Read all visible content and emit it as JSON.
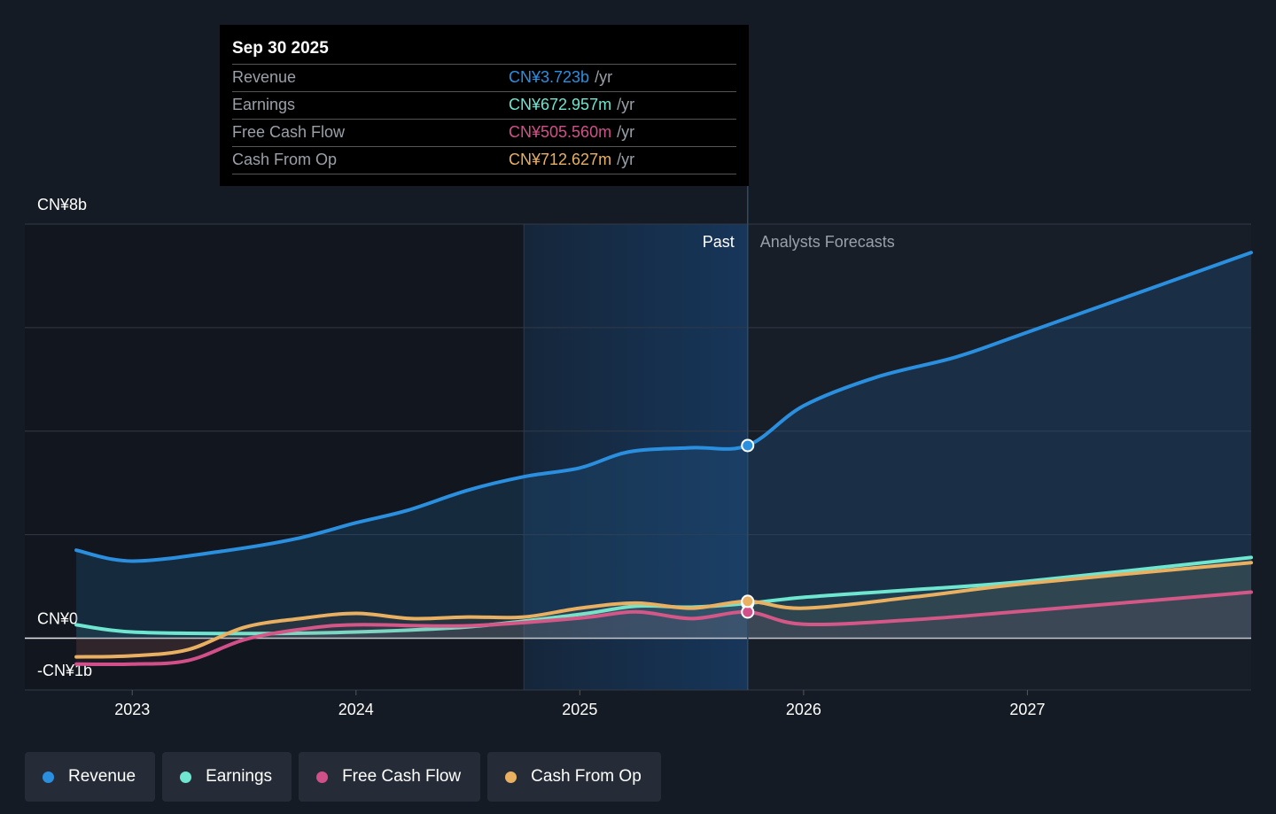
{
  "chart_data": {
    "type": "line",
    "xlim": [
      2022.52,
      2028.0
    ],
    "xticks": [
      2023,
      2024,
      2025,
      2026,
      2027
    ],
    "ylim": [
      -1,
      8
    ],
    "yticks": [
      {
        "value": -1,
        "label": "-CN¥1b"
      },
      {
        "value": 0,
        "label": "CN¥0"
      },
      {
        "value": 2,
        "label": null
      },
      {
        "value": 4,
        "label": null
      },
      {
        "value": 6,
        "label": null
      },
      {
        "value": 8,
        "label": "CN¥8b"
      }
    ],
    "grid": true,
    "past_band": [
      2024.75,
      2025.75
    ],
    "past_label": "Past",
    "forecast_label": "Analysts Forecasts",
    "highlight_x": 2025.75,
    "series": [
      {
        "name": "Revenue",
        "color": "#2b8fe0",
        "x": [
          2022.75,
          2023.0,
          2023.4,
          2023.73,
          2024.0,
          2024.23,
          2024.5,
          2024.75,
          2025.0,
          2025.22,
          2025.5,
          2025.75,
          2026.0,
          2026.33,
          2026.68,
          2027.0,
          2028.0
        ],
        "values": [
          1.7,
          1.49,
          1.68,
          1.92,
          2.23,
          2.47,
          2.86,
          3.12,
          3.29,
          3.6,
          3.68,
          3.723,
          4.49,
          5.05,
          5.43,
          5.91,
          7.45
        ]
      },
      {
        "name": "Earnings",
        "color": "#6ee6d0",
        "x": [
          2022.75,
          2023.0,
          2023.5,
          2024.0,
          2024.5,
          2025.0,
          2025.25,
          2025.5,
          2025.75,
          2026.0,
          2026.5,
          2027.0,
          2028.0
        ],
        "values": [
          0.26,
          0.12,
          0.09,
          0.12,
          0.22,
          0.46,
          0.62,
          0.6,
          0.673,
          0.79,
          0.94,
          1.1,
          1.56
        ]
      },
      {
        "name": "Free Cash Flow",
        "color": "#d2508a",
        "x": [
          2022.75,
          2023.0,
          2023.25,
          2023.5,
          2023.75,
          2024.0,
          2024.5,
          2025.0,
          2025.25,
          2025.5,
          2025.75,
          2026.0,
          2026.5,
          2027.0,
          2028.0
        ],
        "values": [
          -0.5,
          -0.5,
          -0.43,
          -0.03,
          0.17,
          0.26,
          0.24,
          0.39,
          0.51,
          0.38,
          0.506,
          0.27,
          0.36,
          0.53,
          0.89
        ]
      },
      {
        "name": "Cash From Op",
        "color": "#e9b062",
        "x": [
          2022.75,
          2023.0,
          2023.25,
          2023.5,
          2023.75,
          2024.0,
          2024.25,
          2024.5,
          2024.75,
          2025.0,
          2025.25,
          2025.5,
          2025.75,
          2026.0,
          2026.5,
          2027.0,
          2028.0
        ],
        "values": [
          -0.36,
          -0.34,
          -0.22,
          0.21,
          0.38,
          0.48,
          0.38,
          0.41,
          0.41,
          0.58,
          0.68,
          0.58,
          0.713,
          0.58,
          0.8,
          1.06,
          1.46
        ]
      }
    ]
  },
  "tooltip": {
    "date": "Sep 30 2025",
    "suffix": "/yr",
    "rows": [
      {
        "label": "Revenue",
        "value": "CN¥3.723b"
      },
      {
        "label": "Earnings",
        "value": "CN¥672.957m"
      },
      {
        "label": "Free Cash Flow",
        "value": "CN¥505.560m"
      },
      {
        "label": "Cash From Op",
        "value": "CN¥712.627m"
      }
    ]
  }
}
